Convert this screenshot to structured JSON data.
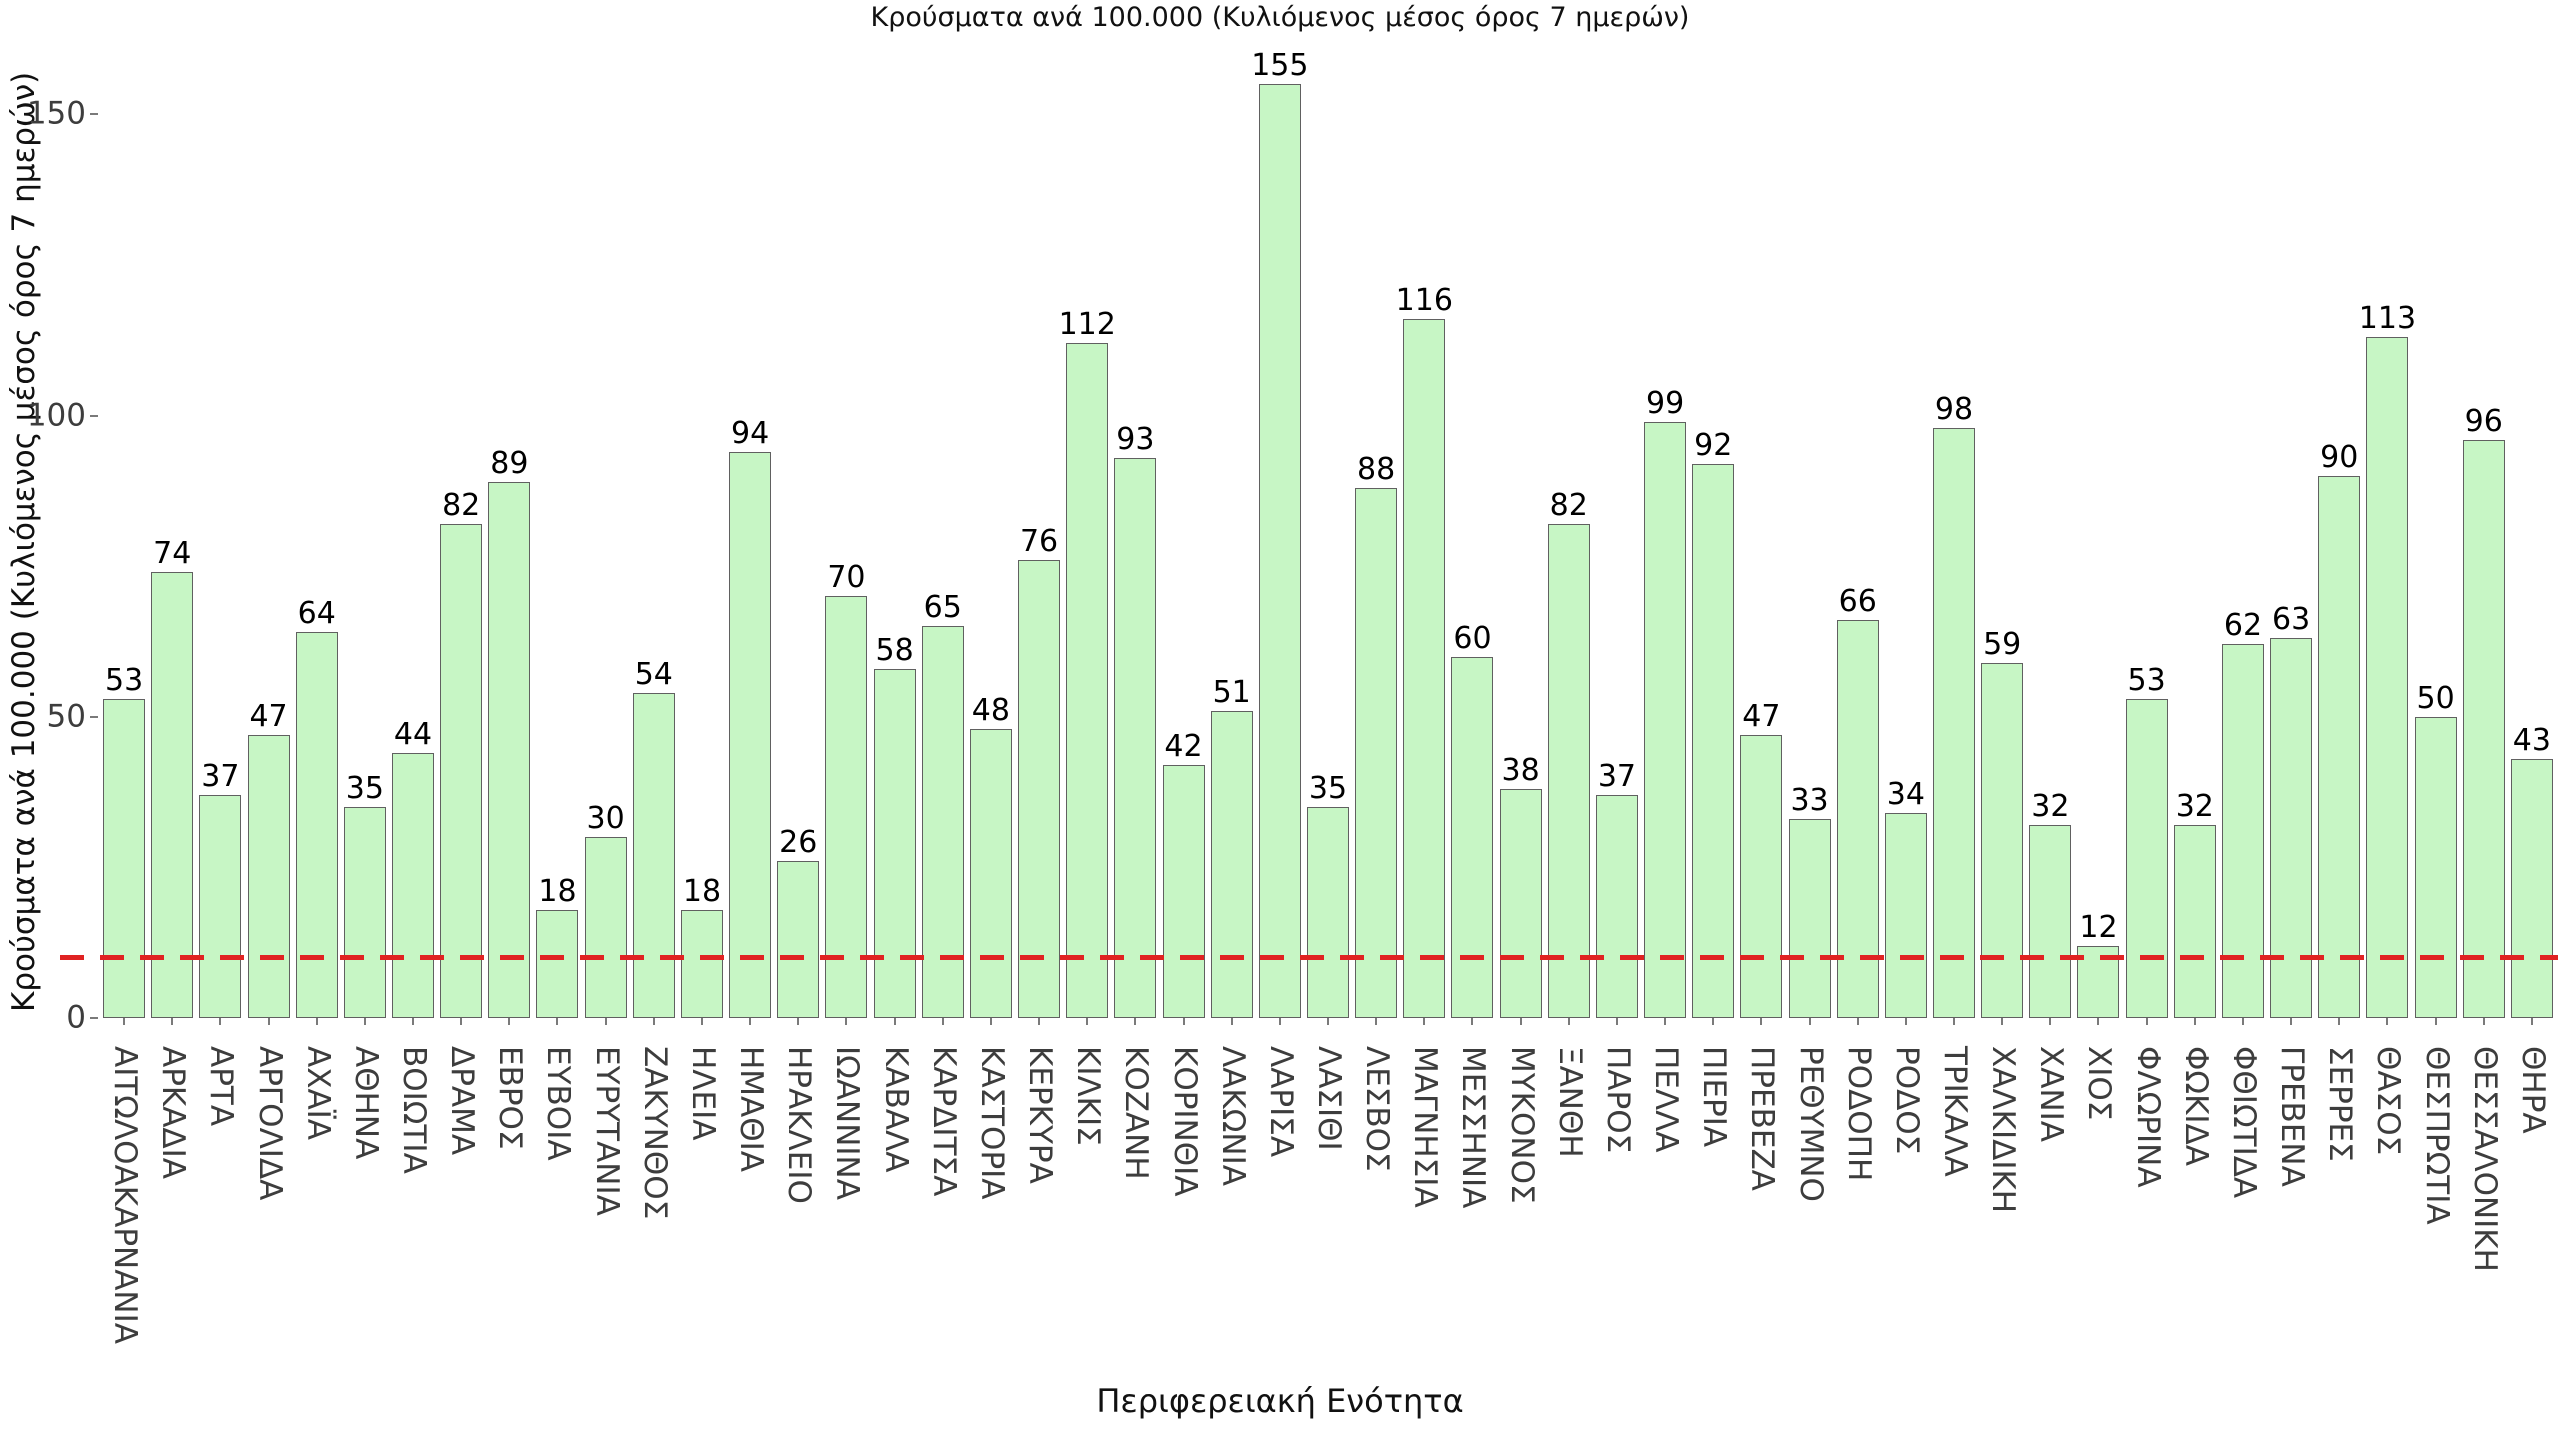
{
  "chart_data": {
    "type": "bar",
    "title": "Κρούσματα ανά 100.000 (Κυλιόμενος μέσος όρος 7 ημερών)",
    "xlabel": "Περιφερειακή Ενότητα",
    "ylabel": "Κρούσματα ανά 100.000 (Κυλιόμενος μέσος όρος 7 ημερών)",
    "categories": [
      "ΑΙΤΩΛΟΑΚΑΡΝΑΝΙΑ",
      "ΑΡΚΑΔΙΑ",
      "ΑΡΤΑ",
      "ΑΡΓΟΛΙΔΑ",
      "ΑΧΑΪΑ",
      "ΑΘΗΝΑ",
      "ΒΟΙΩΤΙΑ",
      "ΔΡΑΜΑ",
      "ΕΒΡΟΣ",
      "ΕΥΒΟΙΑ",
      "ΕΥΡΥΤΑΝΙΑ",
      "ΖΑΚΥΝΘΟΣ",
      "ΗΛΕΙΑ",
      "ΗΜΑΘΙΑ",
      "ΗΡΑΚΛΕΙΟ",
      "ΙΩΑΝΝΙΝΑ",
      "ΚΑΒΑΛΑ",
      "ΚΑΡΔΙΤΣΑ",
      "ΚΑΣΤΟΡΙΑ",
      "ΚΕΡΚΥΡΑ",
      "ΚΙΛΚΙΣ",
      "ΚΟΖΑΝΗ",
      "ΚΟΡΙΝΘΙΑ",
      "ΛΑΚΩΝΙΑ",
      "ΛΑΡΙΣΑ",
      "ΛΑΣΙΘΙ",
      "ΛΕΣΒΟΣ",
      "ΜΑΓΝΗΣΙΑ",
      "ΜΕΣΣΗΝΙΑ",
      "ΜΥΚΟΝΟΣ",
      "ΞΑΝΘΗ",
      "ΠΑΡΟΣ",
      "ΠΕΛΛΑ",
      "ΠΙΕΡΙΑ",
      "ΠΡΕΒΕΖΑ",
      "ΡΕΘΥΜΝΟ",
      "ΡΟΔΟΠΗ",
      "ΡΟΔΟΣ",
      "ΤΡΙΚΑΛΑ",
      "ΧΑΛΚΙΔΙΚΗ",
      "ΧΑΝΙΑ",
      "ΧΙΟΣ",
      "ΦΛΩΡΙΝΑ",
      "ΦΩΚΙΔΑ",
      "ΦΘΙΩΤΙΔΑ",
      "ΓΡΕΒΕΝΑ",
      "ΣΕΡΡΕΣ",
      "ΘΑΣΟΣ",
      "ΘΕΣΠΡΩΤΙΑ",
      "ΘΕΣΣΑΛΟΝΙΚΗ",
      "ΘΗΡΑ"
    ],
    "values": [
      53,
      74,
      37,
      47,
      64,
      35,
      44,
      82,
      89,
      18,
      30,
      54,
      18,
      94,
      26,
      70,
      58,
      65,
      48,
      76,
      112,
      93,
      42,
      51,
      155,
      35,
      88,
      116,
      60,
      38,
      82,
      37,
      99,
      92,
      47,
      33,
      66,
      34,
      98,
      59,
      32,
      12,
      53,
      32,
      62,
      63,
      90,
      113,
      50,
      96,
      43
    ],
    "yticks": [
      0,
      50,
      100,
      150
    ],
    "ylim": [
      0,
      164
    ],
    "grid": false,
    "legend": null,
    "reference_line": {
      "value": 10,
      "style": "dashed",
      "color": "#e02222"
    },
    "bar_fill_color": "#c7f6c5",
    "bar_border_color": "#606060",
    "value_labels_shown": true
  }
}
